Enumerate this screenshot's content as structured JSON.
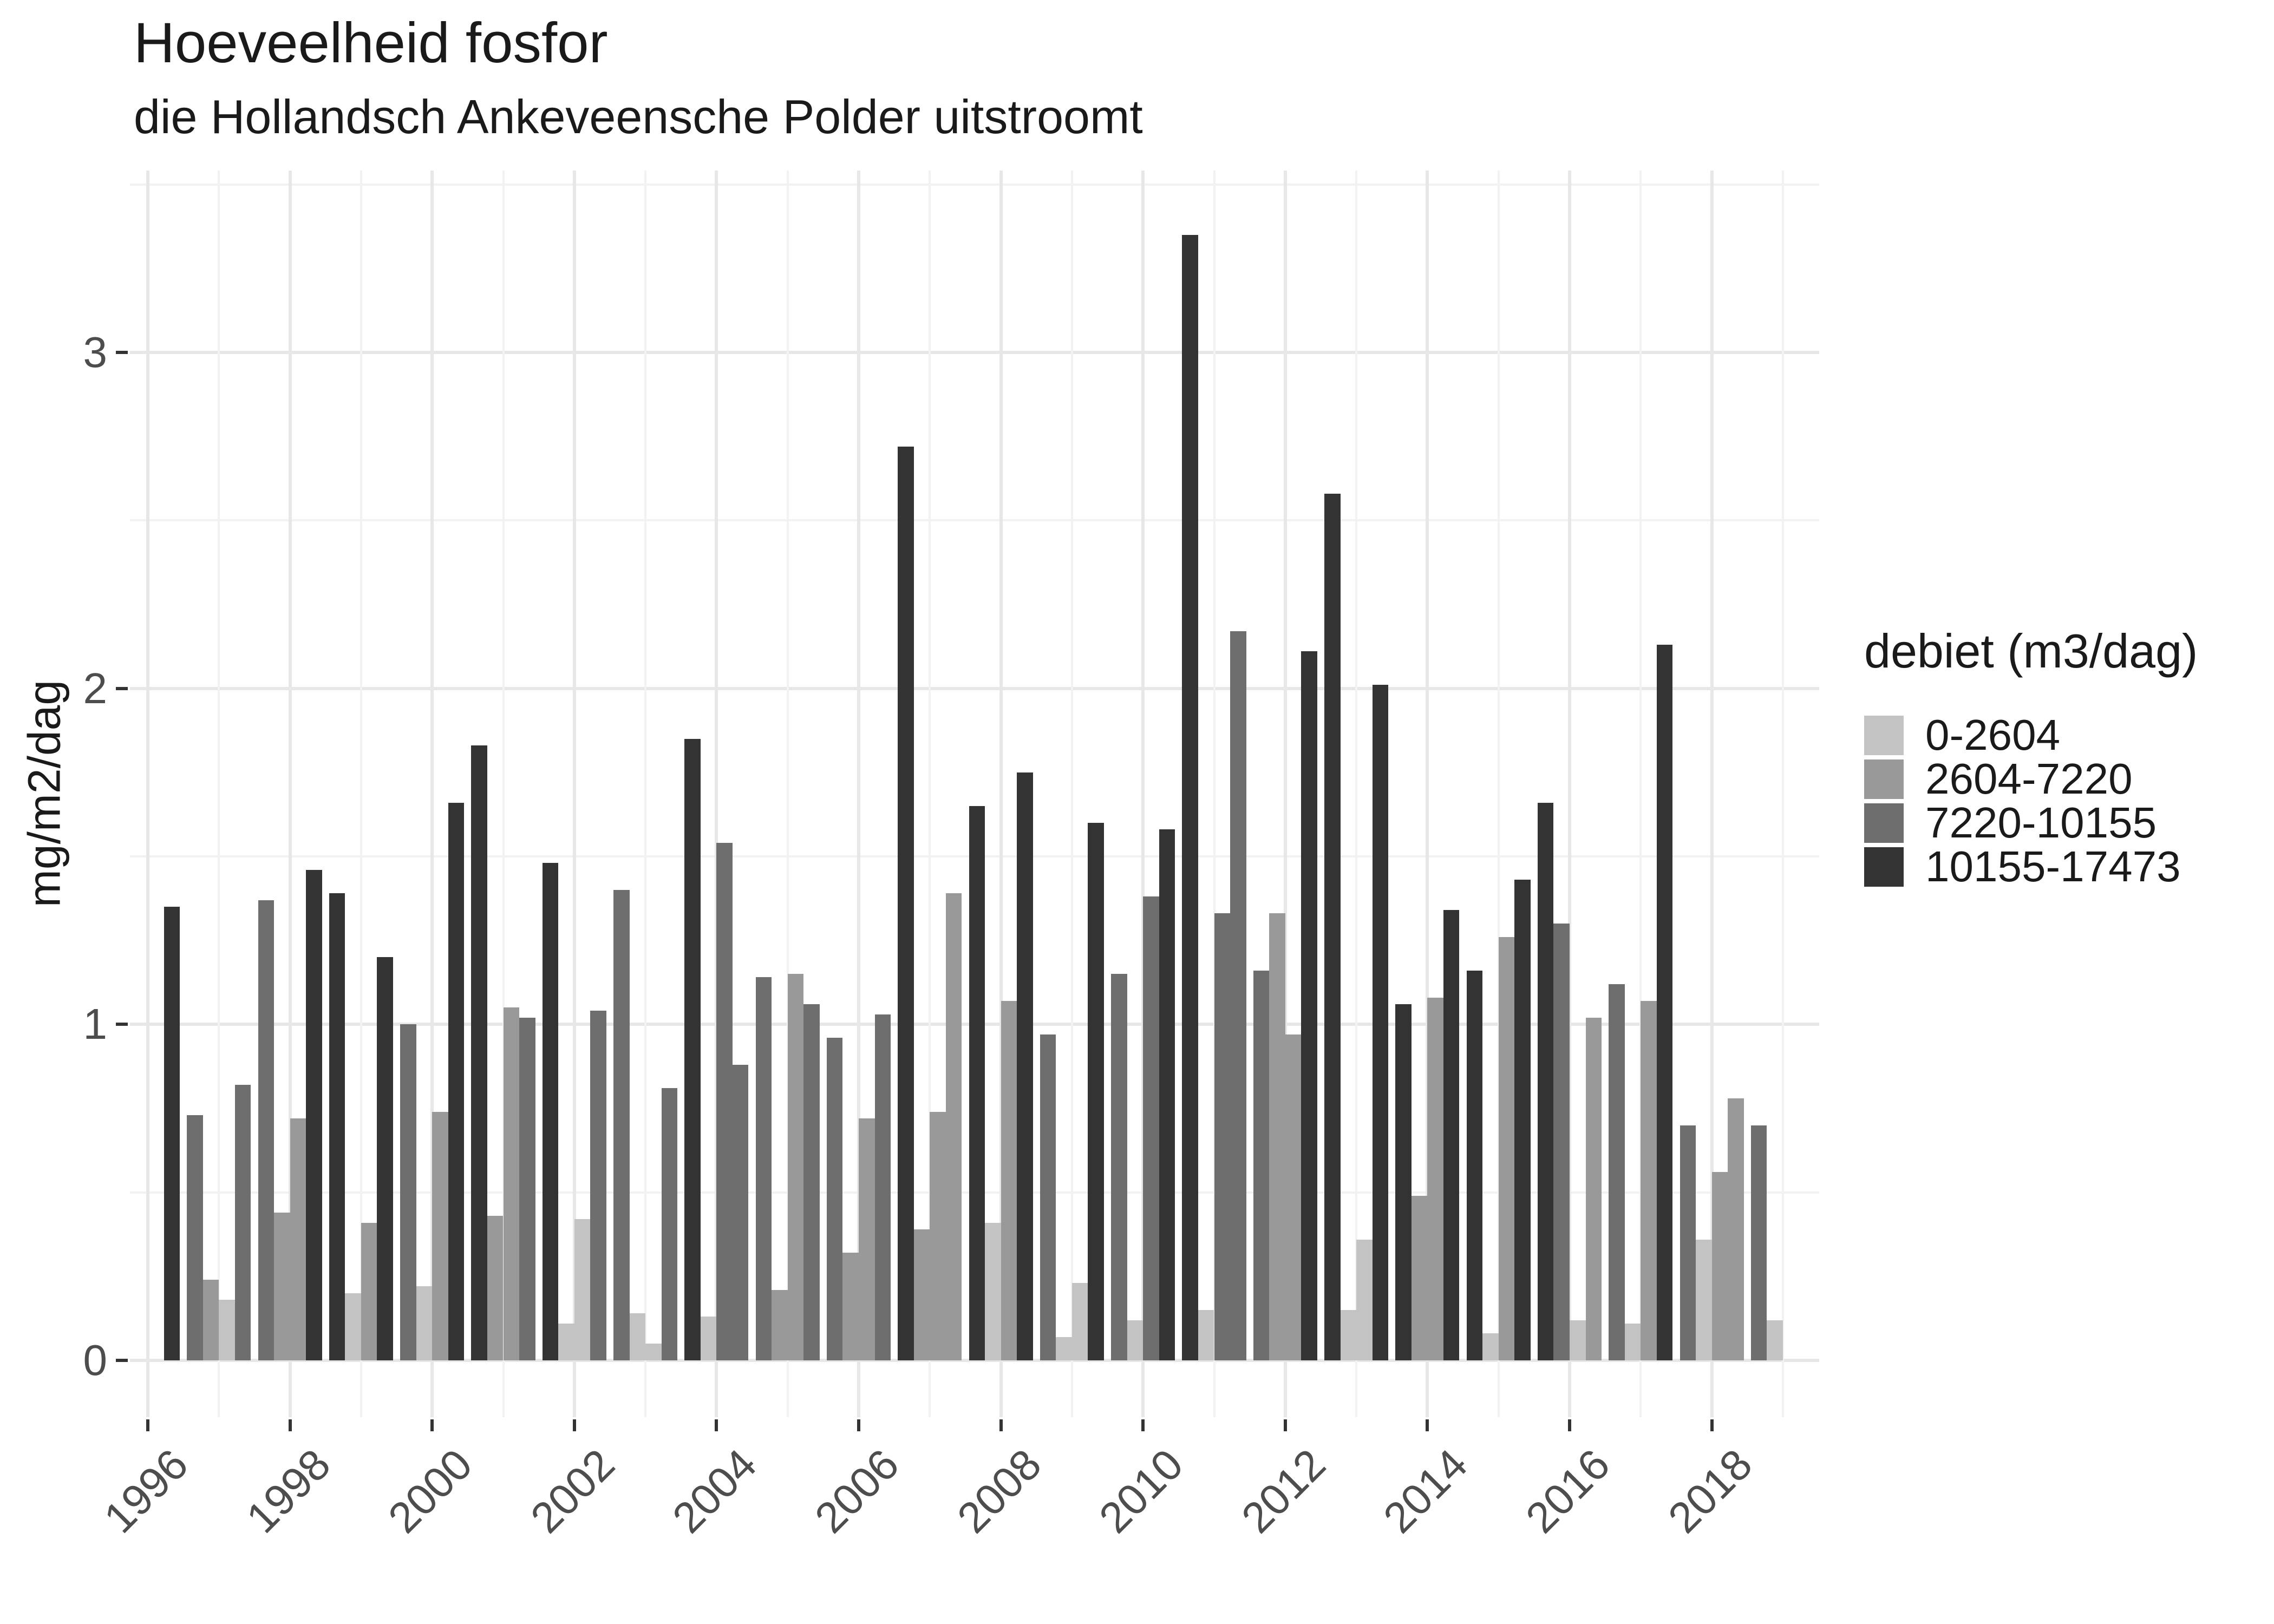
{
  "chart_data": {
    "type": "bar",
    "title": "Hoeveelheid fosfor",
    "subtitle": "die Hollandsch Ankeveensche Polder uitstroomt",
    "ylabel": "mg/m2/dag",
    "xlabel": "",
    "ylim": [
      0,
      3.54
    ],
    "yticks": [
      0,
      1,
      2,
      3
    ],
    "y_minor_gridlines": [
      0.5,
      1.5,
      2.5,
      3.5
    ],
    "x_year_range": [
      1996,
      2019
    ],
    "x_tick_years": [
      1996,
      1998,
      2000,
      2002,
      2004,
      2006,
      2008,
      2010,
      2012,
      2014,
      2016,
      2018
    ],
    "grid": "major and minor, light gray on white",
    "legend_position": "right",
    "legend": {
      "title": "debiet (m3/dag)",
      "entries": [
        {
          "label": "0-2604",
          "color": "#c3c3c3"
        },
        {
          "label": "2604-7220",
          "color": "#999999"
        },
        {
          "label": "7220-10155",
          "color": "#6e6e6e"
        },
        {
          "label": "10155-17473",
          "color": "#333333"
        }
      ]
    },
    "bar_columns": [
      "year",
      "slot_in_year",
      "debiet_class_index",
      "value_mg_m2_dag"
    ],
    "bars": [
      [
        1996,
        4,
        3,
        1.35
      ],
      [
        1997,
        1,
        2,
        0.73
      ],
      [
        1997,
        2,
        1,
        0.24
      ],
      [
        1997,
        3,
        0,
        0.18
      ],
      [
        1997,
        4,
        2,
        0.82
      ],
      [
        1998,
        1,
        2,
        1.37
      ],
      [
        1998,
        2,
        1,
        0.44
      ],
      [
        1998,
        3,
        1,
        0.72
      ],
      [
        1998,
        4,
        3,
        1.46
      ],
      [
        1999,
        1,
        3,
        1.39
      ],
      [
        1999,
        2,
        0,
        0.2
      ],
      [
        1999,
        3,
        1,
        0.41
      ],
      [
        1999,
        4,
        3,
        1.2
      ],
      [
        2000,
        1,
        2,
        1.0
      ],
      [
        2000,
        2,
        0,
        0.22
      ],
      [
        2000,
        3,
        1,
        0.74
      ],
      [
        2000,
        4,
        3,
        1.66
      ],
      [
        2001,
        1,
        3,
        1.83
      ],
      [
        2001,
        2,
        1,
        0.43
      ],
      [
        2001,
        3,
        1,
        1.05
      ],
      [
        2001,
        4,
        2,
        1.02
      ],
      [
        2002,
        1,
        3,
        1.48
      ],
      [
        2002,
        2,
        0,
        0.11
      ],
      [
        2002,
        3,
        0,
        0.42
      ],
      [
        2002,
        4,
        2,
        1.04
      ],
      [
        2003,
        1,
        2,
        1.4
      ],
      [
        2003,
        2,
        0,
        0.14
      ],
      [
        2003,
        3,
        0,
        0.05
      ],
      [
        2003,
        4,
        2,
        0.81
      ],
      [
        2004,
        1,
        3,
        1.85
      ],
      [
        2004,
        2,
        0,
        0.13
      ],
      [
        2004,
        3,
        2,
        1.54
      ],
      [
        2004,
        4,
        2,
        0.88
      ],
      [
        2005,
        1,
        2,
        1.14
      ],
      [
        2005,
        2,
        1,
        0.21
      ],
      [
        2005,
        3,
        1,
        1.15
      ],
      [
        2005,
        4,
        2,
        1.06
      ],
      [
        2006,
        1,
        2,
        0.96
      ],
      [
        2006,
        2,
        1,
        0.32
      ],
      [
        2006,
        3,
        1,
        0.72
      ],
      [
        2006,
        4,
        2,
        1.03
      ],
      [
        2007,
        1,
        3,
        2.72
      ],
      [
        2007,
        2,
        1,
        0.39
      ],
      [
        2007,
        3,
        1,
        0.74
      ],
      [
        2007,
        4,
        1,
        1.39
      ],
      [
        2008,
        1,
        3,
        1.65
      ],
      [
        2008,
        2,
        0,
        0.41
      ],
      [
        2008,
        3,
        1,
        1.07
      ],
      [
        2008,
        4,
        3,
        1.75
      ],
      [
        2009,
        1,
        2,
        0.97
      ],
      [
        2009,
        2,
        0,
        0.07
      ],
      [
        2009,
        3,
        0,
        0.23
      ],
      [
        2009,
        4,
        3,
        1.6
      ],
      [
        2010,
        1,
        2,
        1.15
      ],
      [
        2010,
        2,
        0,
        0.12
      ],
      [
        2010,
        3,
        2,
        1.38
      ],
      [
        2010,
        4,
        3,
        1.58
      ],
      [
        2011,
        1,
        3,
        3.35
      ],
      [
        2011,
        2,
        0,
        0.15
      ],
      [
        2011,
        3,
        2,
        1.33
      ],
      [
        2011,
        4,
        2,
        2.17
      ],
      [
        2012,
        1,
        2,
        1.16
      ],
      [
        2012,
        2,
        1,
        1.33
      ],
      [
        2012,
        3,
        1,
        0.97
      ],
      [
        2012,
        4,
        3,
        2.11
      ],
      [
        2013,
        1,
        3,
        2.58
      ],
      [
        2013,
        2,
        0,
        0.15
      ],
      [
        2013,
        3,
        0,
        0.36
      ],
      [
        2013,
        4,
        3,
        2.01
      ],
      [
        2014,
        1,
        3,
        1.06
      ],
      [
        2014,
        2,
        1,
        0.49
      ],
      [
        2014,
        3,
        1,
        1.08
      ],
      [
        2014,
        4,
        3,
        1.34
      ],
      [
        2015,
        1,
        3,
        1.16
      ],
      [
        2015,
        2,
        0,
        0.08
      ],
      [
        2015,
        3,
        1,
        1.26
      ],
      [
        2015,
        4,
        3,
        1.43
      ],
      [
        2016,
        1,
        3,
        1.66
      ],
      [
        2016,
        2,
        2,
        1.3
      ],
      [
        2016,
        3,
        0,
        0.12
      ],
      [
        2016,
        4,
        1,
        1.02
      ],
      [
        2017,
        1,
        2,
        1.12
      ],
      [
        2017,
        2,
        0,
        0.11
      ],
      [
        2017,
        3,
        1,
        1.07
      ],
      [
        2017,
        4,
        3,
        2.13
      ],
      [
        2018,
        1,
        2,
        0.7
      ],
      [
        2018,
        2,
        0,
        0.36
      ],
      [
        2018,
        3,
        1,
        0.56
      ],
      [
        2018,
        4,
        1,
        0.78
      ],
      [
        2019,
        1,
        2,
        0.7
      ],
      [
        2019,
        2,
        0,
        0.12
      ]
    ],
    "axis_text_color": "#4d4d4d",
    "tick_mark_color": "#333333"
  }
}
